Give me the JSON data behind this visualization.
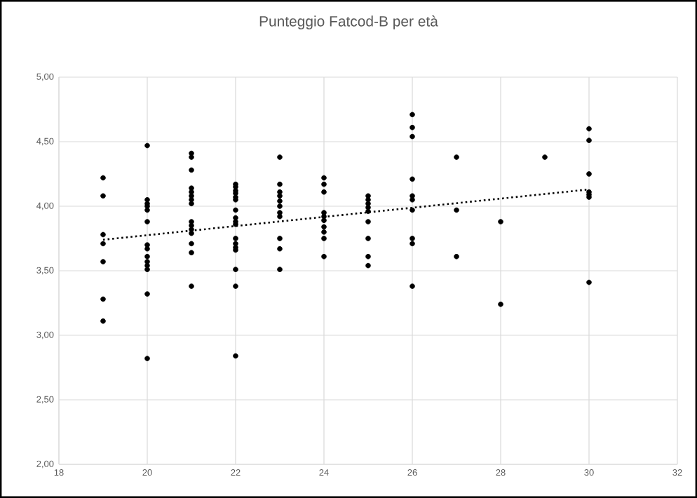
{
  "chart_data": {
    "type": "scatter",
    "title": "Punteggio Fatcod-B per età",
    "marker": "circle",
    "grid": true,
    "xlim": [
      18,
      32
    ],
    "xticks": [
      18,
      20,
      22,
      24,
      26,
      28,
      30,
      32
    ],
    "ylim": [
      2,
      5
    ],
    "yticks": [
      {
        "value": 2,
        "label": "2,00"
      },
      {
        "value": 2.5,
        "label": "2,50"
      },
      {
        "value": 3,
        "label": "3,00"
      },
      {
        "value": 3.5,
        "label": "3,50"
      },
      {
        "value": 4,
        "label": "4,00"
      },
      {
        "value": 4.5,
        "label": "4,50"
      },
      {
        "value": 5,
        "label": "5,00"
      }
    ],
    "series": [
      {
        "color": "#000000",
        "x": [
          19,
          19,
          19,
          19,
          19,
          19,
          19,
          20,
          20,
          20,
          20,
          20,
          20,
          20,
          20,
          20,
          20,
          20,
          20,
          20,
          20,
          21,
          21,
          21,
          21,
          21,
          21,
          21,
          21,
          21,
          21,
          21,
          21,
          21,
          21,
          21,
          22,
          22,
          22,
          22,
          22,
          22,
          22,
          22,
          22,
          22,
          22,
          22,
          22,
          22,
          22,
          22,
          22,
          23,
          23,
          23,
          23,
          23,
          23,
          23,
          23,
          23,
          23,
          23,
          24,
          24,
          24,
          24,
          24,
          24,
          24,
          24,
          24,
          24,
          25,
          25,
          25,
          25,
          25,
          25,
          25,
          25,
          25,
          26,
          26,
          26,
          26,
          26,
          26,
          26,
          26,
          26,
          26,
          27,
          27,
          27,
          28,
          28,
          29,
          30,
          30,
          30,
          30,
          30,
          30,
          30
        ],
        "values": [
          4.22,
          4.08,
          3.78,
          3.71,
          3.57,
          3.28,
          3.11,
          4.47,
          4.05,
          4.02,
          4.0,
          3.97,
          3.88,
          3.7,
          3.67,
          3.61,
          3.57,
          3.54,
          3.51,
          3.32,
          2.82,
          4.41,
          4.38,
          4.28,
          4.14,
          4.11,
          4.08,
          4.05,
          4.02,
          3.88,
          3.85,
          3.82,
          3.79,
          3.71,
          3.64,
          3.38,
          4.17,
          4.15,
          4.12,
          4.1,
          4.07,
          4.05,
          3.97,
          3.91,
          3.88,
          3.86,
          3.75,
          3.71,
          3.68,
          3.66,
          3.51,
          3.38,
          2.84,
          4.38,
          4.17,
          4.11,
          4.08,
          4.04,
          4.0,
          3.95,
          3.92,
          3.75,
          3.67,
          3.51,
          4.22,
          4.17,
          4.11,
          3.95,
          3.92,
          3.89,
          3.84,
          3.8,
          3.75,
          3.61,
          4.08,
          4.05,
          4.02,
          3.99,
          3.96,
          3.88,
          3.75,
          3.61,
          3.54,
          4.71,
          4.61,
          4.54,
          4.21,
          4.08,
          4.05,
          3.97,
          3.75,
          3.71,
          3.38,
          4.38,
          3.97,
          3.61,
          3.88,
          3.24,
          4.38,
          4.6,
          4.51,
          4.25,
          4.11,
          4.09,
          4.07,
          3.41
        ]
      },
      {
        "type": "line",
        "color": "#000000",
        "marker": "none",
        "line_style": "dotted",
        "x": [
          19,
          30
        ],
        "values": [
          3.74,
          4.13
        ]
      }
    ]
  }
}
